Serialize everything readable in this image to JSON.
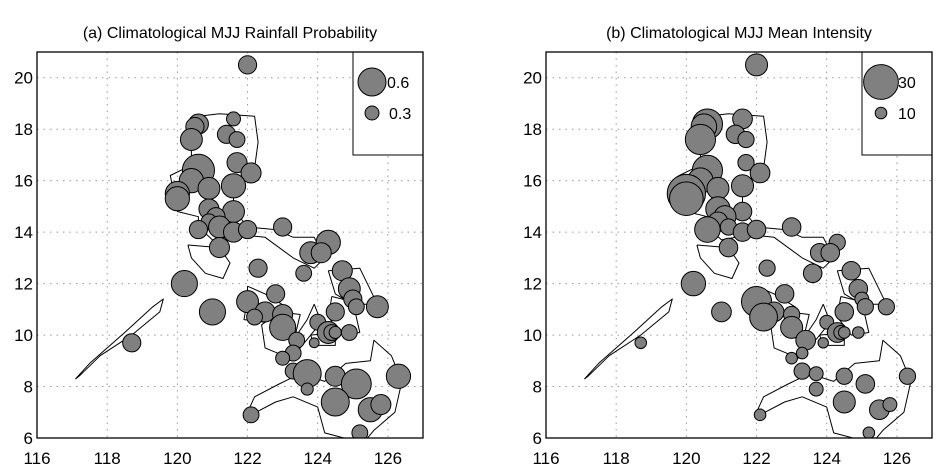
{
  "chart_data": [
    {
      "type": "scatter",
      "title": "(a) Climatological MJJ Rainfall Probability",
      "xlabel": "",
      "ylabel": "",
      "xlim": [
        116,
        127
      ],
      "ylim": [
        6,
        21
      ],
      "xticks": [
        "116",
        "118",
        "120",
        "122",
        "124",
        "126"
      ],
      "yticks": [
        "6",
        "8",
        "10",
        "12",
        "14",
        "16",
        "18",
        "20"
      ],
      "grid": true,
      "legend_position": "top-right",
      "legend": [
        {
          "label": "0.6",
          "value": 0.6
        },
        {
          "label": "0.3",
          "value": 0.3
        }
      ],
      "size_variable": "rainfall probability",
      "points_field": "p"
    },
    {
      "type": "scatter",
      "title": "(b) Climatological MJJ Mean Intensity",
      "xlabel": "",
      "ylabel": "",
      "xlim": [
        116,
        127
      ],
      "ylim": [
        6,
        21
      ],
      "xticks": [
        "116",
        "118",
        "120",
        "122",
        "124",
        "126"
      ],
      "yticks": [
        "6",
        "8",
        "10",
        "12",
        "14",
        "16",
        "18",
        "20"
      ],
      "grid": true,
      "legend_position": "top-right",
      "legend": [
        {
          "label": "30",
          "value": 30
        },
        {
          "label": "10",
          "value": 10
        }
      ],
      "size_variable": "mean intensity",
      "points_field": "i"
    }
  ],
  "stations": [
    {
      "lon": 122.0,
      "lat": 20.5,
      "p": 0.39,
      "i": 19
    },
    {
      "lon": 120.6,
      "lat": 18.2,
      "p": 0.43,
      "i": 26
    },
    {
      "lon": 120.5,
      "lat": 18.1,
      "p": 0.39,
      "i": 22
    },
    {
      "lon": 120.4,
      "lat": 17.6,
      "p": 0.47,
      "i": 26
    },
    {
      "lon": 121.6,
      "lat": 18.4,
      "p": 0.3,
      "i": 17
    },
    {
      "lon": 121.4,
      "lat": 17.8,
      "p": 0.39,
      "i": 16
    },
    {
      "lon": 121.7,
      "lat": 17.6,
      "p": 0.34,
      "i": 14
    },
    {
      "lon": 120.6,
      "lat": 16.4,
      "p": 0.69,
      "i": 26
    },
    {
      "lon": 121.7,
      "lat": 16.7,
      "p": 0.43,
      "i": 14
    },
    {
      "lon": 122.1,
      "lat": 16.3,
      "p": 0.43,
      "i": 17
    },
    {
      "lon": 120.4,
      "lat": 16.0,
      "p": 0.52,
      "i": 22
    },
    {
      "lon": 120.9,
      "lat": 15.7,
      "p": 0.47,
      "i": 19
    },
    {
      "lon": 121.6,
      "lat": 15.8,
      "p": 0.52,
      "i": 19
    },
    {
      "lon": 120.0,
      "lat": 15.5,
      "p": 0.52,
      "i": 33
    },
    {
      "lon": 120.0,
      "lat": 15.3,
      "p": 0.52,
      "i": 29
    },
    {
      "lon": 120.9,
      "lat": 14.9,
      "p": 0.43,
      "i": 21
    },
    {
      "lon": 121.6,
      "lat": 14.8,
      "p": 0.47,
      "i": 16
    },
    {
      "lon": 121.1,
      "lat": 14.6,
      "p": 0.39,
      "i": 19
    },
    {
      "lon": 120.9,
      "lat": 14.4,
      "p": 0.34,
      "i": 17
    },
    {
      "lon": 120.6,
      "lat": 14.1,
      "p": 0.39,
      "i": 22
    },
    {
      "lon": 121.2,
      "lat": 14.2,
      "p": 0.47,
      "i": 14
    },
    {
      "lon": 121.6,
      "lat": 14.0,
      "p": 0.43,
      "i": 16
    },
    {
      "lon": 122.0,
      "lat": 14.1,
      "p": 0.39,
      "i": 16
    },
    {
      "lon": 123.0,
      "lat": 14.2,
      "p": 0.39,
      "i": 16
    },
    {
      "lon": 121.2,
      "lat": 13.4,
      "p": 0.43,
      "i": 16
    },
    {
      "lon": 124.3,
      "lat": 13.6,
      "p": 0.52,
      "i": 14
    },
    {
      "lon": 123.8,
      "lat": 13.2,
      "p": 0.47,
      "i": 16
    },
    {
      "lon": 124.1,
      "lat": 13.2,
      "p": 0.43,
      "i": 16
    },
    {
      "lon": 123.6,
      "lat": 12.4,
      "p": 0.34,
      "i": 16
    },
    {
      "lon": 122.3,
      "lat": 12.6,
      "p": 0.39,
      "i": 14
    },
    {
      "lon": 124.7,
      "lat": 12.5,
      "p": 0.43,
      "i": 16
    },
    {
      "lon": 120.2,
      "lat": 12.0,
      "p": 0.56,
      "i": 21
    },
    {
      "lon": 124.9,
      "lat": 11.8,
      "p": 0.47,
      "i": 16
    },
    {
      "lon": 122.8,
      "lat": 11.6,
      "p": 0.39,
      "i": 16
    },
    {
      "lon": 122.0,
      "lat": 11.3,
      "p": 0.47,
      "i": 26
    },
    {
      "lon": 125.0,
      "lat": 11.4,
      "p": 0.39,
      "i": 12
    },
    {
      "lon": 125.7,
      "lat": 11.1,
      "p": 0.47,
      "i": 14
    },
    {
      "lon": 121.0,
      "lat": 10.9,
      "p": 0.56,
      "i": 17
    },
    {
      "lon": 122.5,
      "lat": 10.9,
      "p": 0.43,
      "i": 17
    },
    {
      "lon": 123.0,
      "lat": 10.8,
      "p": 0.43,
      "i": 14
    },
    {
      "lon": 122.2,
      "lat": 10.7,
      "p": 0.34,
      "i": 24
    },
    {
      "lon": 124.5,
      "lat": 10.9,
      "p": 0.39,
      "i": 16
    },
    {
      "lon": 125.1,
      "lat": 11.1,
      "p": 0.34,
      "i": 14
    },
    {
      "lon": 123.0,
      "lat": 10.3,
      "p": 0.56,
      "i": 19
    },
    {
      "lon": 124.0,
      "lat": 10.5,
      "p": 0.34,
      "i": 12
    },
    {
      "lon": 124.3,
      "lat": 10.1,
      "p": 0.47,
      "i": 17
    },
    {
      "lon": 124.4,
      "lat": 10.1,
      "p": 0.34,
      "i": 12
    },
    {
      "lon": 124.5,
      "lat": 10.1,
      "p": 0.26,
      "i": 10
    },
    {
      "lon": 124.9,
      "lat": 10.1,
      "p": 0.34,
      "i": 10
    },
    {
      "lon": 123.4,
      "lat": 9.8,
      "p": 0.34,
      "i": 17
    },
    {
      "lon": 123.9,
      "lat": 9.7,
      "p": 0.21,
      "i": 9
    },
    {
      "lon": 123.3,
      "lat": 9.3,
      "p": 0.34,
      "i": 10
    },
    {
      "lon": 123.0,
      "lat": 9.1,
      "p": 0.3,
      "i": 10
    },
    {
      "lon": 123.3,
      "lat": 8.6,
      "p": 0.34,
      "i": 14
    },
    {
      "lon": 123.7,
      "lat": 8.5,
      "p": 0.6,
      "i": 12
    },
    {
      "lon": 124.5,
      "lat": 8.4,
      "p": 0.43,
      "i": 14
    },
    {
      "lon": 125.1,
      "lat": 8.1,
      "p": 0.64,
      "i": 16
    },
    {
      "lon": 126.3,
      "lat": 8.4,
      "p": 0.52,
      "i": 14
    },
    {
      "lon": 123.7,
      "lat": 7.9,
      "p": 0.26,
      "i": 12
    },
    {
      "lon": 124.5,
      "lat": 7.4,
      "p": 0.6,
      "i": 19
    },
    {
      "lon": 125.5,
      "lat": 7.1,
      "p": 0.52,
      "i": 17
    },
    {
      "lon": 125.8,
      "lat": 7.3,
      "p": 0.43,
      "i": 12
    },
    {
      "lon": 122.1,
      "lat": 6.9,
      "p": 0.34,
      "i": 10
    },
    {
      "lon": 125.2,
      "lat": 6.2,
      "p": 0.34,
      "i": 10
    },
    {
      "lon": 118.7,
      "lat": 9.7,
      "p": 0.39,
      "i": 10
    }
  ],
  "colors": {
    "bubble_fill": "#808080",
    "bubble_edge": "#000000",
    "grid": "#9a9a9a"
  }
}
